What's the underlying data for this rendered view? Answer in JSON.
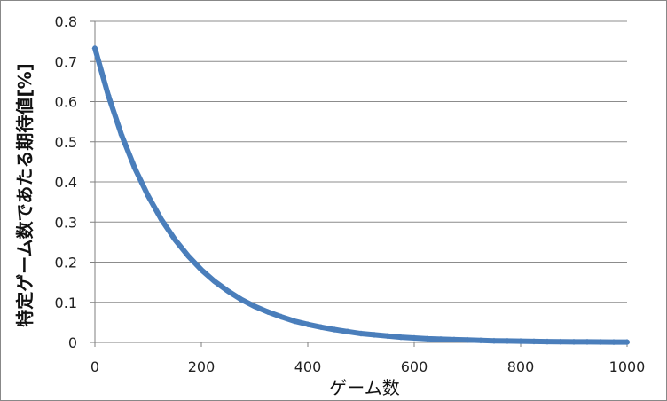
{
  "chart_data": {
    "type": "scatter",
    "title": "",
    "xlabel": "ゲーム数",
    "ylabel": "特定ゲーム数であたる期待値[%]",
    "xlim": [
      0,
      1000
    ],
    "ylim": [
      0,
      0.8
    ],
    "x_ticks": [
      0,
      200,
      400,
      600,
      800,
      1000
    ],
    "y_ticks": [
      0,
      0.1,
      0.2,
      0.3,
      0.4,
      0.5,
      0.6,
      0.7,
      0.8
    ],
    "x_tick_labels": [
      "0",
      "200",
      "400",
      "600",
      "800",
      "1000"
    ],
    "y_tick_labels": [
      "0",
      "0.1",
      "0.2",
      "0.3",
      "0.4",
      "0.5",
      "0.6",
      "0.7",
      "0.8"
    ],
    "grid": true,
    "legend": "none",
    "series": [
      {
        "color": "#4a7ebb",
        "x": [
          0,
          25,
          50,
          75,
          100,
          125,
          150,
          175,
          200,
          225,
          250,
          275,
          300,
          325,
          350,
          375,
          400,
          425,
          450,
          475,
          500,
          525,
          550,
          575,
          600,
          625,
          650,
          675,
          700,
          725,
          750,
          775,
          800,
          825,
          850,
          875,
          900,
          925,
          950,
          975,
          1000
        ],
        "y": [
          0.733,
          0.616,
          0.517,
          0.434,
          0.365,
          0.306,
          0.257,
          0.216,
          0.181,
          0.152,
          0.128,
          0.107,
          0.09,
          0.076,
          0.064,
          0.053,
          0.045,
          0.038,
          0.032,
          0.027,
          0.022,
          0.019,
          0.016,
          0.013,
          0.011,
          0.009,
          0.008,
          0.007,
          0.006,
          0.005,
          0.004,
          0.0035,
          0.003,
          0.0025,
          0.002,
          0.0018,
          0.0015,
          0.0013,
          0.0011,
          0.0009,
          0.0008
        ]
      }
    ]
  }
}
